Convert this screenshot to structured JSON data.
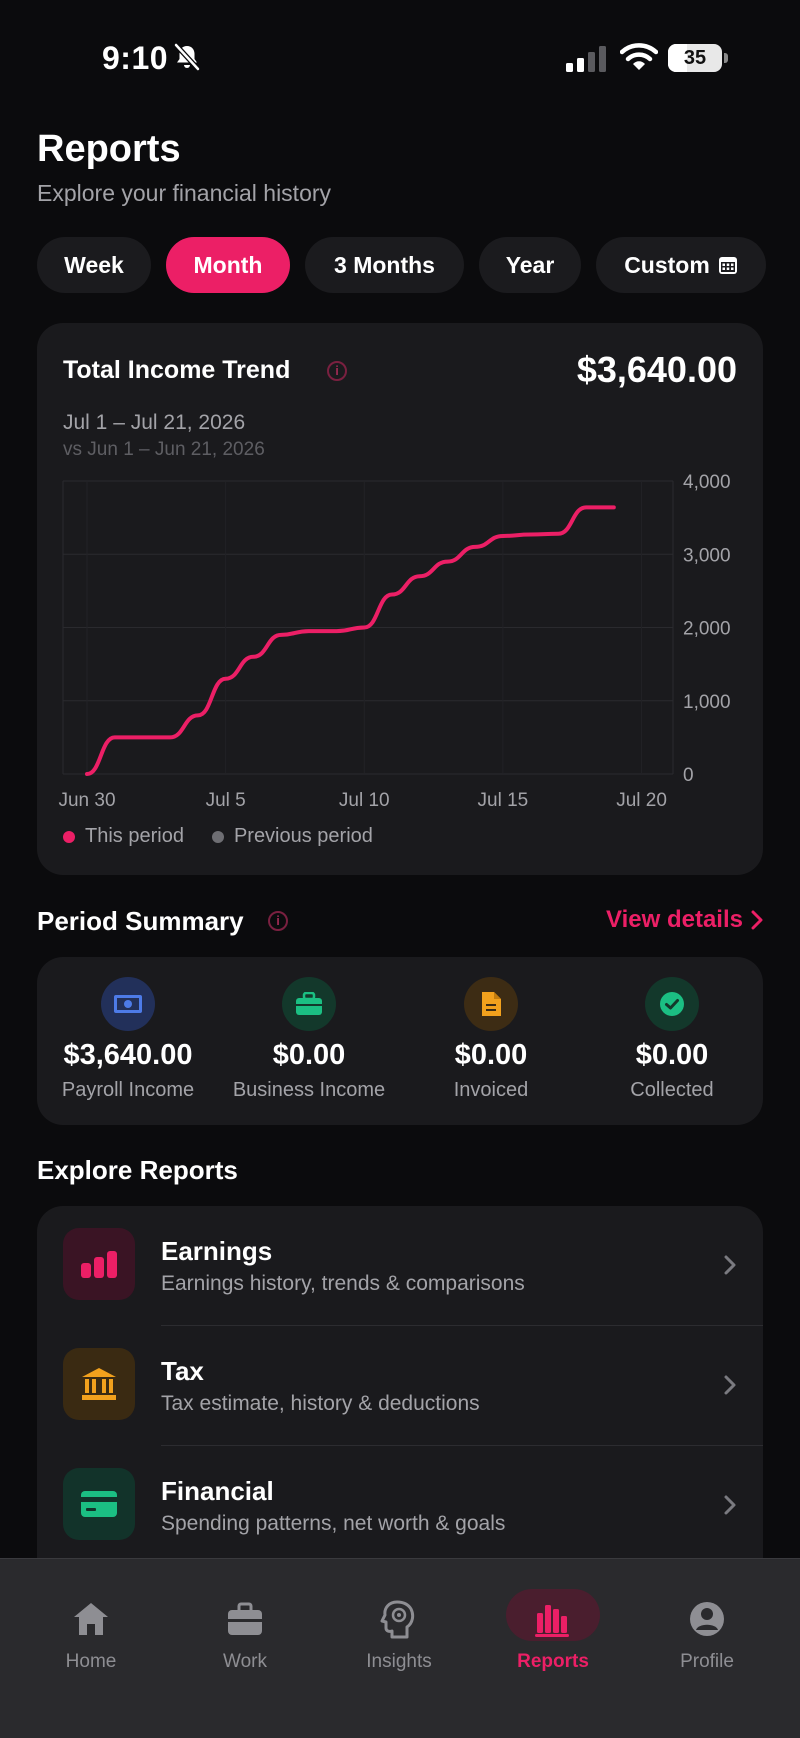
{
  "status_bar": {
    "time": "9:10",
    "battery": "35",
    "battery_level": 0.35
  },
  "header": {
    "title": "Reports",
    "subtitle": "Explore your financial history"
  },
  "period_tabs": [
    {
      "label": "Week",
      "active": false
    },
    {
      "label": "Month",
      "active": true
    },
    {
      "label": "3 Months",
      "active": false
    },
    {
      "label": "Year",
      "active": false
    },
    {
      "label": "Custom",
      "active": false
    }
  ],
  "income_trend": {
    "title": "Total Income Trend",
    "total": "$3,640.00",
    "range": "Jul 1 – Jul 21, 2026",
    "compare_range": "vs Jun 1 – Jun 21, 2026",
    "legend": {
      "current": "This period",
      "previous": "Previous period"
    }
  },
  "chart_data": {
    "type": "line",
    "x": [
      "Jun 30",
      "Jul 1",
      "Jul 2",
      "Jul 3",
      "Jul 4",
      "Jul 5",
      "Jul 6",
      "Jul 7",
      "Jul 8",
      "Jul 9",
      "Jul 10",
      "Jul 11",
      "Jul 12",
      "Jul 13",
      "Jul 14",
      "Jul 15",
      "Jul 16",
      "Jul 17",
      "Jul 18",
      "Jul 19"
    ],
    "x_ticks": [
      "Jun 30",
      "Jul 5",
      "Jul 10",
      "Jul 15",
      "Jul 20"
    ],
    "series": [
      {
        "name": "This period",
        "color": "#ec1f66",
        "values": [
          0,
          500,
          500,
          500,
          800,
          1300,
          1600,
          1900,
          1950,
          1950,
          2000,
          2450,
          2700,
          2900,
          3100,
          3250,
          3270,
          3280,
          3640,
          3640
        ]
      }
    ],
    "y_ticks": [
      "0",
      "1,000",
      "2,000",
      "3,000",
      "4,000"
    ],
    "ylim": [
      0,
      4000
    ],
    "grid": true,
    "legend_position": "bottom-left"
  },
  "period_summary": {
    "title": "Period Summary",
    "view_details": "View details",
    "items": [
      {
        "value": "$3,640.00",
        "label": "Payroll Income",
        "icon": "cash-icon",
        "color": "#4d7be8"
      },
      {
        "value": "$0.00",
        "label": "Business Income",
        "icon": "briefcase-icon",
        "color": "#1bbf83"
      },
      {
        "value": "$0.00",
        "label": "Invoiced",
        "icon": "document-icon",
        "color": "#f2a11d"
      },
      {
        "value": "$0.00",
        "label": "Collected",
        "icon": "check-circle-icon",
        "color": "#1bbf83"
      }
    ]
  },
  "explore_reports": {
    "title": "Explore Reports",
    "items": [
      {
        "name": "Earnings",
        "desc": "Earnings history, trends & comparisons",
        "icon": "bar-chart-icon"
      },
      {
        "name": "Tax",
        "desc": "Tax estimate, history & deductions",
        "icon": "bank-icon"
      },
      {
        "name": "Financial",
        "desc": "Spending patterns, net worth & goals",
        "icon": "credit-card-icon"
      }
    ]
  },
  "tab_bar": [
    {
      "label": "Home",
      "icon": "home-icon",
      "active": false
    },
    {
      "label": "Work",
      "icon": "briefcase-icon",
      "active": false
    },
    {
      "label": "Insights",
      "icon": "brain-icon",
      "active": false
    },
    {
      "label": "Reports",
      "icon": "bar-chart-icon",
      "active": true
    },
    {
      "label": "Profile",
      "icon": "user-icon",
      "active": false
    }
  ]
}
